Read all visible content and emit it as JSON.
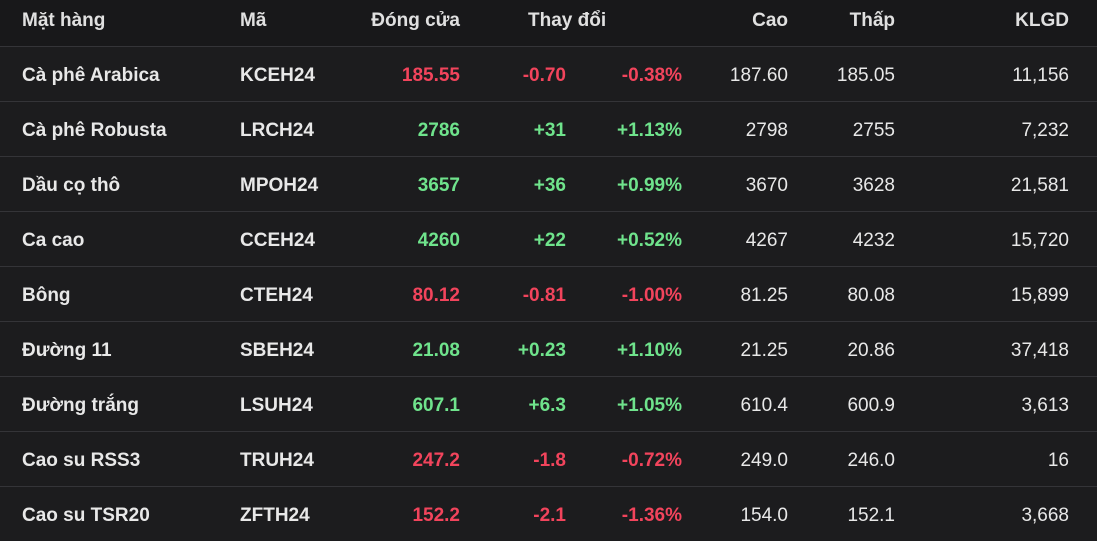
{
  "table": {
    "header": [
      "Mặt hàng",
      "Mã",
      "Đóng cửa",
      "Thay đổi",
      "Cao",
      "Thấp",
      "KLGD"
    ],
    "rows": [
      [
        "Cà phê Arabica",
        "KCEH24",
        "185.55",
        "-0.70",
        "-0.38%",
        "187.60",
        "185.05",
        "11,156"
      ],
      [
        "Cà phê Robusta",
        "LRCH24",
        "2786",
        "+31",
        "+1.13%",
        "2798",
        "2755",
        "7,232"
      ],
      [
        "Dầu cọ thô",
        "MPOH24",
        "3657",
        "+36",
        "+0.99%",
        "3670",
        "3628",
        "21,581"
      ],
      [
        "Ca cao",
        "CCEH24",
        "4260",
        "+22",
        "+0.52%",
        "4267",
        "4232",
        "15,720"
      ],
      [
        "Bông",
        "CTEH24",
        "80.12",
        "-0.81",
        "-1.00%",
        "81.25",
        "80.08",
        "15,899"
      ],
      [
        "Đường 11",
        "SBEH24",
        "21.08",
        "+0.23",
        "+1.10%",
        "21.25",
        "20.86",
        "37,418"
      ],
      [
        "Đường trắng",
        "LSUH24",
        "607.1",
        "+6.3",
        "+1.05%",
        "610.4",
        "600.9",
        "3,613"
      ],
      [
        "Cao su RSS3",
        "TRUH24",
        "247.2",
        "-1.8",
        "-0.72%",
        "249.0",
        "246.0",
        "16"
      ],
      [
        "Cao su TSR20",
        "ZFTH24",
        "152.2",
        "-2.1",
        "-1.36%",
        "154.0",
        "152.1",
        "3,668"
      ]
    ]
  }
}
